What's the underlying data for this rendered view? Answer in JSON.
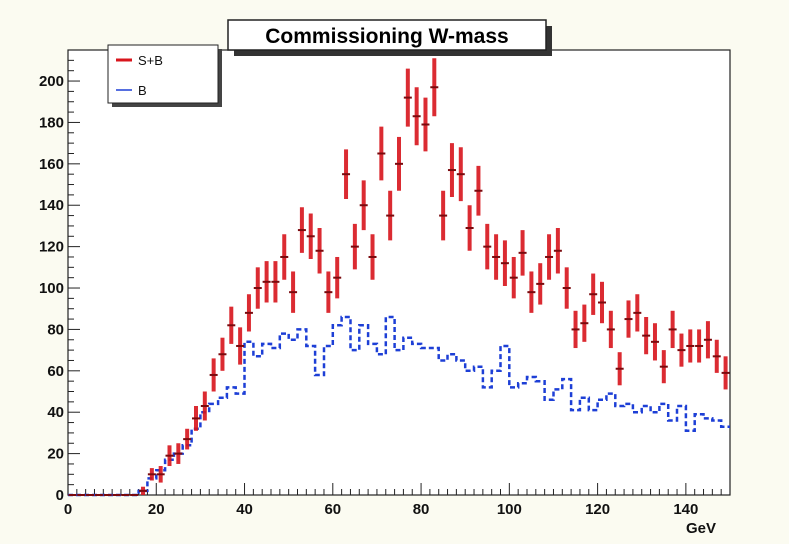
{
  "chart_data": {
    "type": "scatter",
    "title": "Commissioning W-mass",
    "xlabel": "GeV",
    "ylabel": "",
    "xlim": [
      0,
      150
    ],
    "ylim": [
      0,
      215
    ],
    "xticks": [
      0,
      20,
      40,
      60,
      80,
      100,
      120,
      140
    ],
    "yticks": [
      0,
      20,
      40,
      60,
      80,
      100,
      120,
      140,
      160,
      180,
      200
    ],
    "grid": false,
    "legend_position": "top-left",
    "series": [
      {
        "name": "S+B",
        "style": "points-with-error-bars",
        "color": "#d8151c",
        "x": [
          1,
          3,
          5,
          7,
          9,
          11,
          13,
          15,
          17,
          19,
          21,
          23,
          25,
          27,
          29,
          31,
          33,
          35,
          37,
          39,
          41,
          43,
          45,
          47,
          49,
          51,
          53,
          55,
          57,
          59,
          61,
          63,
          65,
          67,
          69,
          71,
          73,
          75,
          77,
          79,
          81,
          83,
          85,
          87,
          89,
          91,
          93,
          95,
          97,
          99,
          101,
          103,
          105,
          107,
          109,
          111,
          113,
          115,
          117,
          119,
          121,
          123,
          125,
          127,
          129,
          131,
          133,
          135,
          137,
          139,
          141,
          143,
          145,
          147,
          149
        ],
        "y": [
          0,
          0,
          0,
          0,
          0,
          0,
          0,
          0,
          2,
          10,
          10,
          19,
          20,
          27,
          37,
          43,
          58,
          68,
          82,
          72,
          88,
          100,
          103,
          103,
          115,
          98,
          128,
          125,
          118,
          98,
          105,
          155,
          120,
          140,
          115,
          165,
          135,
          160,
          192,
          183,
          179,
          197,
          135,
          157,
          155,
          129,
          147,
          120,
          115,
          112,
          105,
          117,
          98,
          102,
          115,
          118,
          100,
          80,
          83,
          97,
          93,
          80,
          61,
          85,
          88,
          77,
          74,
          62,
          80,
          70,
          72,
          72,
          75,
          67,
          59
        ],
        "error": [
          0,
          0,
          0,
          0,
          0,
          0,
          0,
          0,
          2,
          3,
          4,
          5,
          5,
          5,
          6,
          7,
          8,
          8,
          9,
          9,
          9,
          10,
          10,
          10,
          11,
          10,
          11,
          11,
          11,
          10,
          10,
          12,
          11,
          12,
          11,
          13,
          12,
          13,
          14,
          14,
          13,
          14,
          12,
          13,
          13,
          11,
          12,
          11,
          11,
          11,
          10,
          11,
          10,
          10,
          11,
          11,
          10,
          9,
          9,
          10,
          10,
          9,
          8,
          9,
          9,
          9,
          9,
          8,
          9,
          8,
          8,
          8,
          9,
          8,
          8
        ]
      },
      {
        "name": "B",
        "style": "dashed-step",
        "color": "#1d3fd6",
        "x": [
          1,
          3,
          5,
          7,
          9,
          11,
          13,
          15,
          17,
          19,
          21,
          23,
          25,
          27,
          29,
          31,
          33,
          35,
          37,
          39,
          41,
          43,
          45,
          47,
          49,
          51,
          53,
          55,
          57,
          59,
          61,
          63,
          65,
          67,
          69,
          71,
          73,
          75,
          77,
          79,
          81,
          83,
          85,
          87,
          89,
          91,
          93,
          95,
          97,
          99,
          101,
          103,
          105,
          107,
          109,
          111,
          113,
          115,
          117,
          119,
          121,
          123,
          125,
          127,
          129,
          131,
          133,
          135,
          137,
          139,
          141,
          143,
          145,
          147,
          149
        ],
        "y": [
          0,
          0,
          0,
          0,
          0,
          0,
          0,
          0,
          2,
          8,
          12,
          17,
          20,
          24,
          32,
          40,
          44,
          47,
          52,
          49,
          74,
          67,
          73,
          71,
          78,
          75,
          80,
          72,
          58,
          72,
          82,
          86,
          70,
          82,
          73,
          68,
          86,
          70,
          76,
          73,
          71,
          71,
          65,
          68,
          65,
          60,
          62,
          52,
          60,
          72,
          52,
          54,
          57,
          55,
          46,
          51,
          56,
          41,
          47,
          41,
          46,
          49,
          43,
          44,
          40,
          43,
          40,
          44,
          36,
          43,
          31,
          39,
          37,
          36,
          33
        ],
        "error": []
      }
    ]
  }
}
